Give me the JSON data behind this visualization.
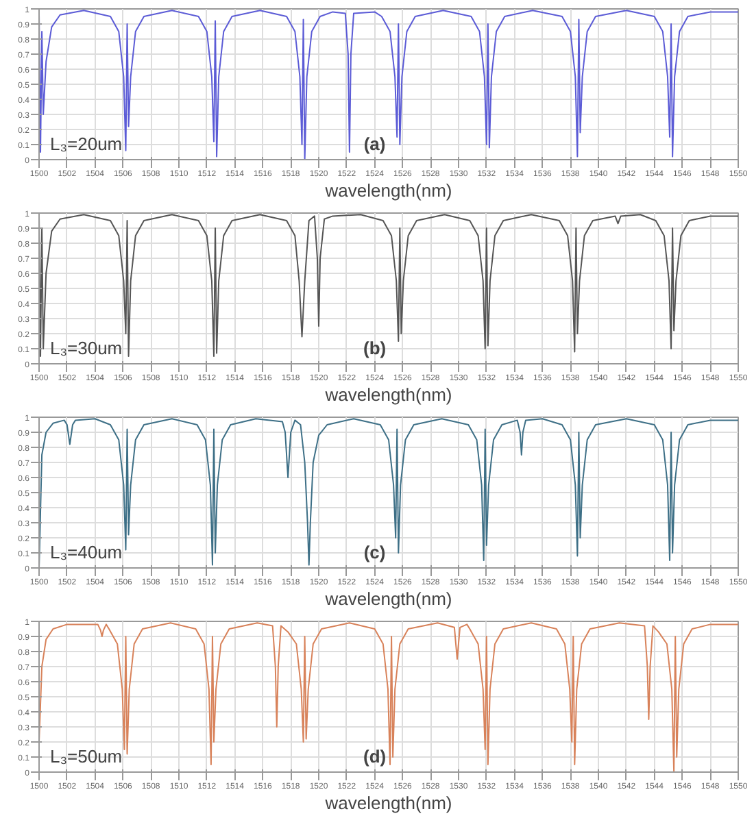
{
  "chart_data": [
    {
      "type": "line",
      "xlabel": "wavelength(nm)",
      "annotations": [
        "L₃=20um",
        "(a)"
      ],
      "color": "#5b5bd6",
      "grid": true,
      "xlim": [
        1500,
        1550
      ],
      "ylim": [
        0,
        1
      ],
      "xticks": [
        1500,
        1502,
        1504,
        1506,
        1508,
        1510,
        1512,
        1514,
        1516,
        1518,
        1520,
        1522,
        1524,
        1526,
        1528,
        1530,
        1532,
        1534,
        1536,
        1538,
        1540,
        1542,
        1544,
        1546,
        1548,
        1550
      ],
      "yticks": [
        0,
        0.1,
        0.2,
        0.3,
        0.4,
        0.5,
        0.6,
        0.7,
        0.8,
        0.9,
        1
      ],
      "x": [
        1500.0,
        1500.1,
        1500.2,
        1500.3,
        1500.5,
        1500.9,
        1501.5,
        1503.2,
        1505.1,
        1505.7,
        1506.05,
        1506.2,
        1506.3,
        1506.4,
        1506.55,
        1506.9,
        1507.5,
        1509.5,
        1511.4,
        1512.0,
        1512.35,
        1512.5,
        1512.6,
        1512.7,
        1512.85,
        1513.2,
        1513.8,
        1515.8,
        1517.7,
        1518.3,
        1518.65,
        1518.8,
        1518.9,
        1519.0,
        1519.15,
        1519.5,
        1520.1,
        1521.0,
        1521.9,
        1522.1,
        1522.2,
        1522.3,
        1522.5,
        1524.0,
        1524.5,
        1525.1,
        1525.45,
        1525.6,
        1525.7,
        1525.8,
        1525.95,
        1526.3,
        1526.9,
        1528.9,
        1530.9,
        1531.5,
        1531.85,
        1532.0,
        1532.1,
        1532.2,
        1532.35,
        1532.7,
        1533.3,
        1535.3,
        1537.4,
        1538.0,
        1538.35,
        1538.5,
        1538.6,
        1538.7,
        1538.85,
        1539.2,
        1539.8,
        1542.0,
        1544.0,
        1544.6,
        1544.95,
        1545.1,
        1545.2,
        1545.3,
        1545.45,
        1545.8,
        1546.4,
        1548.0,
        1550.0
      ],
      "values": [
        0.97,
        0.05,
        0.85,
        0.3,
        0.65,
        0.88,
        0.96,
        0.99,
        0.95,
        0.85,
        0.55,
        0.06,
        0.9,
        0.22,
        0.55,
        0.85,
        0.95,
        0.99,
        0.95,
        0.85,
        0.55,
        0.12,
        0.92,
        0.02,
        0.55,
        0.85,
        0.95,
        0.99,
        0.95,
        0.85,
        0.55,
        0.1,
        0.93,
        0.0,
        0.55,
        0.85,
        0.95,
        0.98,
        0.97,
        0.7,
        0.05,
        0.7,
        0.97,
        0.98,
        0.95,
        0.85,
        0.55,
        0.15,
        0.9,
        0.1,
        0.55,
        0.85,
        0.95,
        0.99,
        0.95,
        0.85,
        0.55,
        0.1,
        0.9,
        0.08,
        0.55,
        0.85,
        0.95,
        0.99,
        0.95,
        0.85,
        0.55,
        0.02,
        0.93,
        0.18,
        0.55,
        0.85,
        0.95,
        0.99,
        0.95,
        0.85,
        0.55,
        0.15,
        0.9,
        0.02,
        0.55,
        0.85,
        0.95,
        0.98,
        0.98
      ]
    },
    {
      "type": "line",
      "xlabel": "wavelength(nm)",
      "annotations": [
        "L₃=30um",
        "(b)"
      ],
      "color": "#555555",
      "grid": true,
      "xlim": [
        1500,
        1550
      ],
      "ylim": [
        0,
        1
      ],
      "xticks": [
        1500,
        1502,
        1504,
        1506,
        1508,
        1510,
        1512,
        1514,
        1516,
        1518,
        1520,
        1522,
        1524,
        1526,
        1528,
        1530,
        1532,
        1534,
        1536,
        1538,
        1540,
        1542,
        1544,
        1546,
        1548,
        1550
      ],
      "yticks": [
        0,
        0.1,
        0.2,
        0.3,
        0.4,
        0.5,
        0.6,
        0.7,
        0.8,
        0.9,
        1
      ],
      "x": [
        1500.0,
        1500.1,
        1500.2,
        1500.3,
        1500.5,
        1500.9,
        1501.5,
        1503.2,
        1505.1,
        1505.7,
        1506.05,
        1506.2,
        1506.3,
        1506.4,
        1506.55,
        1506.9,
        1507.5,
        1509.5,
        1511.4,
        1512.0,
        1512.35,
        1512.5,
        1512.6,
        1512.7,
        1512.85,
        1513.2,
        1513.8,
        1515.8,
        1517.7,
        1518.3,
        1518.6,
        1518.8,
        1519.0,
        1519.3,
        1519.7,
        1519.9,
        1520.0,
        1520.1,
        1520.4,
        1521.0,
        1523.0,
        1524.6,
        1525.2,
        1525.55,
        1525.7,
        1525.8,
        1525.9,
        1526.05,
        1526.4,
        1527.0,
        1529.0,
        1530.8,
        1531.4,
        1531.75,
        1531.9,
        1532.0,
        1532.1,
        1532.25,
        1532.6,
        1533.2,
        1535.2,
        1537.2,
        1537.8,
        1538.15,
        1538.3,
        1538.4,
        1538.5,
        1538.65,
        1539.0,
        1539.6,
        1541.2,
        1541.4,
        1541.6,
        1543.0,
        1544.1,
        1544.7,
        1545.05,
        1545.2,
        1545.3,
        1545.4,
        1545.55,
        1545.9,
        1546.5,
        1548.0,
        1550.0
      ],
      "values": [
        0.98,
        0.05,
        0.9,
        0.1,
        0.6,
        0.88,
        0.96,
        0.99,
        0.95,
        0.85,
        0.55,
        0.2,
        0.95,
        0.05,
        0.55,
        0.85,
        0.95,
        0.99,
        0.95,
        0.85,
        0.55,
        0.05,
        0.9,
        0.07,
        0.55,
        0.85,
        0.95,
        0.99,
        0.95,
        0.85,
        0.55,
        0.18,
        0.55,
        0.95,
        0.98,
        0.7,
        0.25,
        0.7,
        0.96,
        0.98,
        0.99,
        0.95,
        0.85,
        0.55,
        0.15,
        0.9,
        0.2,
        0.55,
        0.85,
        0.95,
        0.99,
        0.95,
        0.85,
        0.55,
        0.1,
        0.9,
        0.12,
        0.55,
        0.85,
        0.95,
        0.99,
        0.95,
        0.85,
        0.55,
        0.08,
        0.9,
        0.2,
        0.55,
        0.85,
        0.95,
        0.98,
        0.93,
        0.98,
        0.99,
        0.95,
        0.85,
        0.55,
        0.1,
        0.9,
        0.22,
        0.55,
        0.85,
        0.95,
        0.98,
        0.98
      ]
    },
    {
      "type": "line",
      "xlabel": "wavelength(nm)",
      "annotations": [
        "L₃=40um",
        "(c)"
      ],
      "color": "#3d6f86",
      "grid": true,
      "xlim": [
        1500,
        1550
      ],
      "ylim": [
        0,
        1
      ],
      "xticks": [
        1500,
        1502,
        1504,
        1506,
        1508,
        1510,
        1512,
        1514,
        1516,
        1518,
        1520,
        1522,
        1524,
        1526,
        1528,
        1530,
        1532,
        1534,
        1536,
        1538,
        1540,
        1542,
        1544,
        1546,
        1548,
        1550
      ],
      "yticks": [
        0,
        0.1,
        0.2,
        0.3,
        0.4,
        0.5,
        0.6,
        0.7,
        0.8,
        0.9,
        1
      ],
      "x": [
        1500.0,
        1500.2,
        1500.5,
        1501.0,
        1501.8,
        1502.0,
        1502.2,
        1502.4,
        1502.6,
        1504.0,
        1505.1,
        1505.7,
        1506.05,
        1506.2,
        1506.3,
        1506.4,
        1506.55,
        1506.9,
        1507.5,
        1509.5,
        1511.3,
        1511.9,
        1512.25,
        1512.4,
        1512.5,
        1512.6,
        1512.75,
        1513.1,
        1513.7,
        1515.5,
        1517.4,
        1517.6,
        1517.8,
        1518.0,
        1518.3,
        1518.7,
        1519.0,
        1519.2,
        1519.3,
        1519.4,
        1519.6,
        1520.0,
        1520.6,
        1522.5,
        1524.4,
        1525.0,
        1525.35,
        1525.5,
        1525.6,
        1525.7,
        1525.85,
        1526.2,
        1526.8,
        1528.8,
        1530.7,
        1531.3,
        1531.65,
        1531.8,
        1531.9,
        1532.0,
        1532.15,
        1532.5,
        1533.1,
        1534.2,
        1534.4,
        1534.5,
        1534.6,
        1534.8,
        1536.0,
        1537.4,
        1538.0,
        1538.35,
        1538.5,
        1538.6,
        1538.7,
        1538.85,
        1539.2,
        1539.8,
        1542.0,
        1544.0,
        1544.6,
        1544.95,
        1545.1,
        1545.2,
        1545.3,
        1545.45,
        1545.8,
        1546.4,
        1548.0,
        1550.0
      ],
      "values": [
        0.0,
        0.75,
        0.9,
        0.96,
        0.98,
        0.95,
        0.82,
        0.95,
        0.98,
        0.99,
        0.95,
        0.85,
        0.55,
        0.12,
        0.92,
        0.22,
        0.55,
        0.85,
        0.95,
        0.99,
        0.95,
        0.85,
        0.55,
        0.02,
        0.92,
        0.1,
        0.55,
        0.85,
        0.95,
        0.99,
        0.97,
        0.9,
        0.6,
        0.9,
        0.98,
        0.95,
        0.7,
        0.3,
        0.02,
        0.3,
        0.7,
        0.88,
        0.95,
        0.99,
        0.95,
        0.85,
        0.55,
        0.2,
        0.92,
        0.1,
        0.55,
        0.85,
        0.95,
        0.99,
        0.95,
        0.85,
        0.55,
        0.05,
        0.92,
        0.15,
        0.55,
        0.85,
        0.95,
        0.98,
        0.9,
        0.75,
        0.9,
        0.98,
        0.99,
        0.95,
        0.85,
        0.55,
        0.08,
        0.9,
        0.2,
        0.55,
        0.85,
        0.95,
        0.99,
        0.95,
        0.85,
        0.55,
        0.05,
        0.9,
        0.1,
        0.55,
        0.85,
        0.95,
        0.98,
        0.98
      ]
    },
    {
      "type": "line",
      "xlabel": "wavelength(nm)",
      "annotations": [
        "L₃=50um",
        "(d)"
      ],
      "color": "#d8825a",
      "grid": true,
      "xlim": [
        1500,
        1550
      ],
      "ylim": [
        0,
        1
      ],
      "xticks": [
        1500,
        1502,
        1504,
        1506,
        1508,
        1510,
        1512,
        1514,
        1516,
        1518,
        1520,
        1522,
        1524,
        1526,
        1528,
        1530,
        1532,
        1534,
        1536,
        1538,
        1540,
        1542,
        1544,
        1546,
        1548,
        1550
      ],
      "yticks": [
        0,
        0.1,
        0.2,
        0.3,
        0.4,
        0.5,
        0.6,
        0.7,
        0.8,
        0.9,
        1
      ],
      "x": [
        1500.0,
        1500.2,
        1500.5,
        1501.0,
        1502.0,
        1504.2,
        1504.4,
        1504.5,
        1504.6,
        1504.8,
        1505.0,
        1505.6,
        1505.95,
        1506.1,
        1506.2,
        1506.3,
        1506.45,
        1506.8,
        1507.4,
        1509.4,
        1511.2,
        1511.8,
        1512.15,
        1512.3,
        1512.4,
        1512.5,
        1512.65,
        1513.0,
        1513.6,
        1515.6,
        1516.7,
        1516.9,
        1517.0,
        1517.1,
        1517.3,
        1517.8,
        1518.4,
        1518.75,
        1518.9,
        1519.0,
        1519.1,
        1519.25,
        1519.6,
        1520.2,
        1522.2,
        1524.0,
        1524.6,
        1524.95,
        1525.1,
        1525.2,
        1525.3,
        1525.45,
        1525.8,
        1526.4,
        1528.5,
        1529.7,
        1529.9,
        1530.1,
        1530.6,
        1530.8,
        1531.4,
        1531.75,
        1531.9,
        1532.0,
        1532.1,
        1532.25,
        1532.6,
        1533.2,
        1535.2,
        1537.0,
        1537.6,
        1537.95,
        1538.1,
        1538.2,
        1538.3,
        1538.45,
        1538.8,
        1539.4,
        1541.5,
        1543.3,
        1543.5,
        1543.6,
        1543.7,
        1543.9,
        1544.3,
        1544.9,
        1545.25,
        1545.4,
        1545.5,
        1545.6,
        1545.75,
        1546.1,
        1546.7,
        1548.0,
        1550.0
      ],
      "values": [
        0.2,
        0.7,
        0.88,
        0.95,
        0.98,
        0.98,
        0.94,
        0.9,
        0.94,
        0.98,
        0.95,
        0.85,
        0.55,
        0.15,
        0.9,
        0.12,
        0.55,
        0.85,
        0.95,
        0.99,
        0.95,
        0.85,
        0.55,
        0.05,
        0.9,
        0.2,
        0.55,
        0.85,
        0.95,
        0.99,
        0.97,
        0.7,
        0.3,
        0.7,
        0.97,
        0.93,
        0.85,
        0.55,
        0.2,
        0.9,
        0.22,
        0.55,
        0.85,
        0.95,
        0.99,
        0.95,
        0.85,
        0.55,
        0.05,
        0.9,
        0.1,
        0.55,
        0.85,
        0.95,
        0.99,
        0.96,
        0.75,
        0.96,
        0.98,
        0.95,
        0.85,
        0.55,
        0.15,
        0.9,
        0.05,
        0.55,
        0.85,
        0.95,
        0.99,
        0.95,
        0.85,
        0.55,
        0.2,
        0.9,
        0.05,
        0.55,
        0.85,
        0.95,
        0.99,
        0.97,
        0.7,
        0.35,
        0.7,
        0.97,
        0.93,
        0.85,
        0.55,
        0.0,
        0.9,
        0.1,
        0.55,
        0.85,
        0.95,
        0.98,
        0.98
      ]
    }
  ]
}
